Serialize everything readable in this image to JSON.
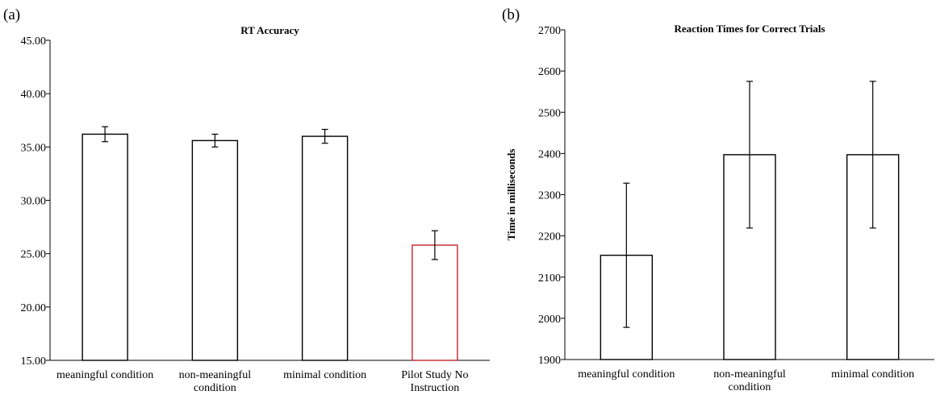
{
  "chart_data": [
    {
      "type": "bar",
      "panel_label": "(a)",
      "title": "RT Accuracy",
      "ylabel": "",
      "xlabel": "",
      "ylim": [
        15,
        45
      ],
      "yticks": [
        "15.00",
        "20.00",
        "25.00",
        "30.00",
        "35.00",
        "40.00",
        "45.00"
      ],
      "tick_values": [
        15,
        20,
        25,
        30,
        35,
        40,
        45
      ],
      "categories": [
        [
          "meaningful condition"
        ],
        [
          "non-meaningful",
          "condition"
        ],
        [
          "minimal condition"
        ],
        [
          "Pilot Study No",
          "Instruction"
        ]
      ],
      "values": [
        36.2,
        35.6,
        36.0,
        25.8
      ],
      "errors": [
        0.7,
        0.6,
        0.65,
        1.35
      ],
      "bar_colors": [
        "#000000",
        "#000000",
        "#000000",
        "#c0282d"
      ],
      "grid": false
    },
    {
      "type": "bar",
      "panel_label": "(b)",
      "title": "Reaction Times for Correct Trials",
      "ylabel": "Time in milliseconds",
      "xlabel": "",
      "ylim": [
        1900,
        2700
      ],
      "yticks": [
        "1900",
        "2000",
        "2100",
        "2200",
        "2300",
        "2400",
        "2500",
        "2600",
        "2700"
      ],
      "tick_values": [
        1900,
        2000,
        2100,
        2200,
        2300,
        2400,
        2500,
        2600,
        2700
      ],
      "categories": [
        [
          "meaningful condition"
        ],
        [
          "non-meaningful",
          "condition"
        ],
        [
          "minimal condition"
        ]
      ],
      "values": [
        2153,
        2397,
        2397
      ],
      "errors": [
        175,
        178,
        178
      ],
      "bar_colors": [
        "#000000",
        "#000000",
        "#000000"
      ],
      "grid": false
    }
  ]
}
